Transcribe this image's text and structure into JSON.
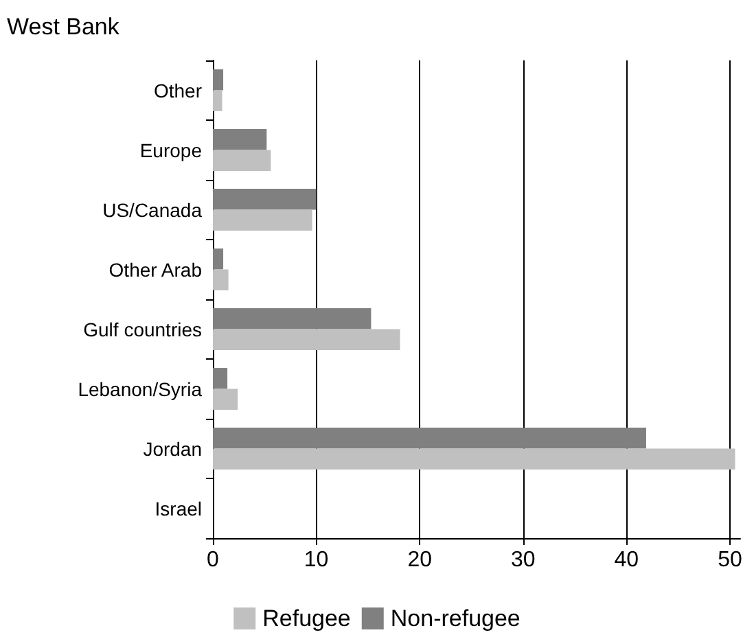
{
  "chart_data": {
    "type": "bar",
    "orientation": "horizontal",
    "title": "West Bank",
    "categories": [
      "Other",
      "Europe",
      "US/Canada",
      "Other Arab",
      "Gulf countries",
      "Lebanon/Syria",
      "Jordan",
      "Israel"
    ],
    "series": [
      {
        "name": "Refugee",
        "color": "#c0c0c0",
        "values": [
          0.9,
          5.6,
          9.6,
          1.5,
          18.1,
          2.4,
          50.5,
          0
        ]
      },
      {
        "name": "Non-refugee",
        "color": "#808080",
        "values": [
          1.0,
          5.2,
          10.0,
          1.0,
          15.3,
          1.4,
          41.9,
          0
        ]
      }
    ],
    "xlim": [
      0,
      51
    ],
    "xticks": [
      0,
      10,
      20,
      30,
      40,
      50
    ],
    "grid": "x",
    "legend": "bottom"
  }
}
